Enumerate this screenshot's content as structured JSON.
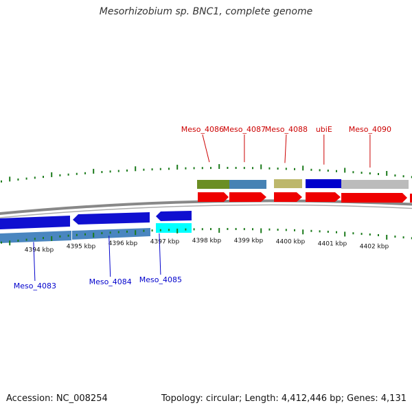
{
  "title": "Mesorhizobium sp. BNC1, complete genome",
  "footer": {
    "accession": "Accession: NC_008254",
    "summary": "Topology: circular; Length: 4,412,446 bp; Genes: 4,131"
  },
  "colors": {
    "forward_label": "#cc0000",
    "reverse_label": "#0000cc",
    "tick": "#1a7a1a",
    "backbone": "#888888"
  },
  "scale_ticks": [
    {
      "kbp": 4394,
      "label": "4394 kbp"
    },
    {
      "kbp": 4395,
      "label": "4395 kbp"
    },
    {
      "kbp": 4396,
      "label": "4396 kbp"
    },
    {
      "kbp": 4397,
      "label": "4397 kbp"
    },
    {
      "kbp": 4398,
      "label": "4398 kbp"
    },
    {
      "kbp": 4399,
      "label": "4399 kbp"
    },
    {
      "kbp": 4400,
      "label": "4400 kbp"
    },
    {
      "kbp": 4401,
      "label": "4401 kbp"
    },
    {
      "kbp": 4402,
      "label": "4402 kbp"
    }
  ],
  "forward_labels": [
    {
      "text": "Meso_4086",
      "kbp": 4397.9
    },
    {
      "text": "Meso_4087",
      "kbp": 4398.9
    },
    {
      "text": "Meso_4088",
      "kbp": 4399.9
    },
    {
      "text": "ubiE",
      "kbp": 4400.8
    },
    {
      "text": "Meso_4090",
      "kbp": 4401.9
    }
  ],
  "reverse_labels": [
    {
      "text": "Meso_4083",
      "kbp": 4393.9
    },
    {
      "text": "Meso_4084",
      "kbp": 4395.7
    },
    {
      "text": "Meso_4085",
      "kbp": 4396.9
    }
  ]
}
